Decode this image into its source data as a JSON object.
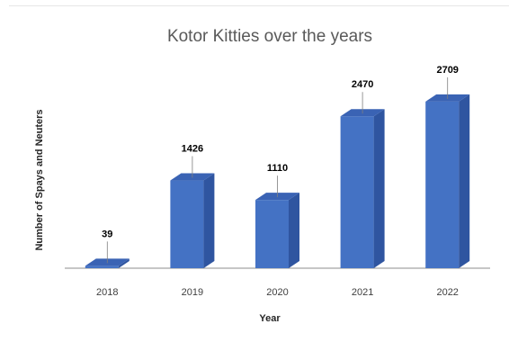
{
  "chart_data": {
    "type": "bar",
    "title": "Kotor Kitties over the years",
    "xlabel": "Year",
    "ylabel": "Number of Spays and Neuters",
    "categories": [
      "2018",
      "2019",
      "2020",
      "2021",
      "2022"
    ],
    "values": [
      39,
      1426,
      1110,
      2470,
      2709
    ],
    "data_labels": [
      "39",
      "1426",
      "1110",
      "2470",
      "2709"
    ],
    "ylim": [
      0,
      3000
    ],
    "grid": false,
    "legend": "none",
    "style": "3d-column",
    "colors": {
      "front": "#4472c4",
      "side": "#2f55a0",
      "top": "#3a63b4",
      "axis": "#8c8c8c"
    }
  }
}
